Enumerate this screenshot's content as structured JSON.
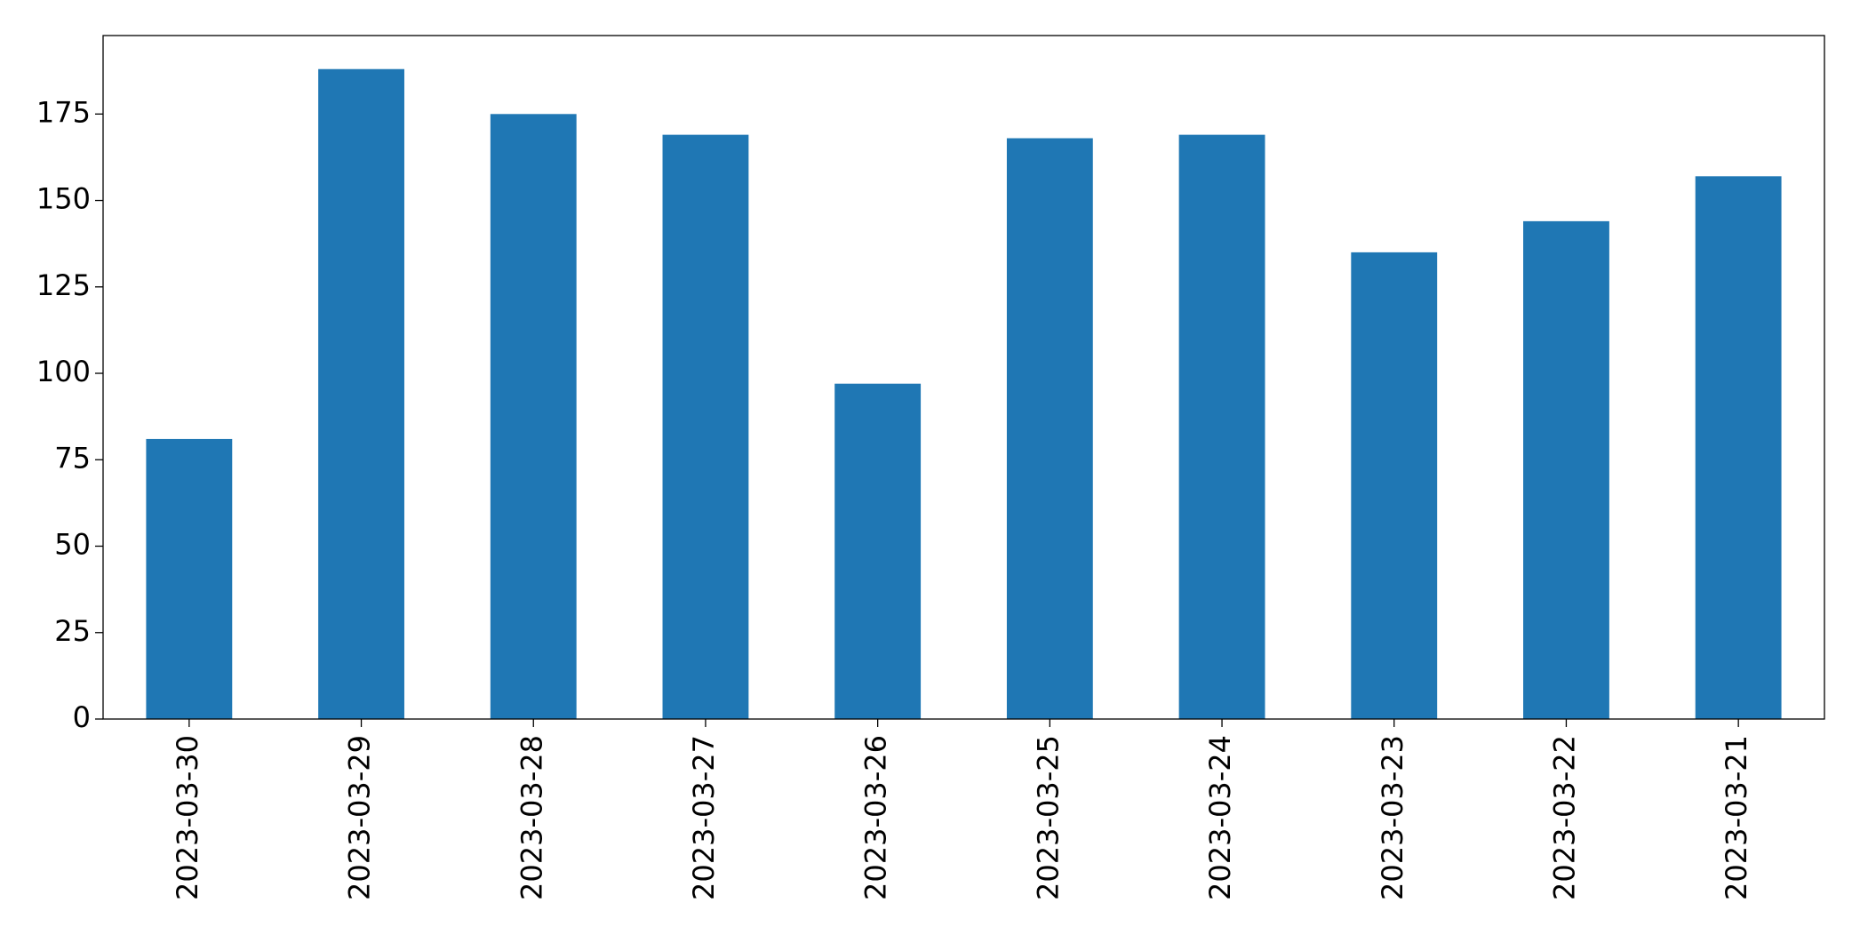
{
  "chart_data": {
    "type": "bar",
    "categories": [
      "2023-03-30",
      "2023-03-29",
      "2023-03-28",
      "2023-03-27",
      "2023-03-26",
      "2023-03-25",
      "2023-03-24",
      "2023-03-23",
      "2023-03-22",
      "2023-03-21"
    ],
    "values": [
      81,
      188,
      175,
      169,
      97,
      168,
      169,
      135,
      144,
      157
    ],
    "color": "#1f77b4",
    "ylim": [
      0,
      197.7
    ],
    "yticks": [
      0,
      25,
      50,
      75,
      100,
      125,
      150,
      175
    ],
    "grid": false
  }
}
